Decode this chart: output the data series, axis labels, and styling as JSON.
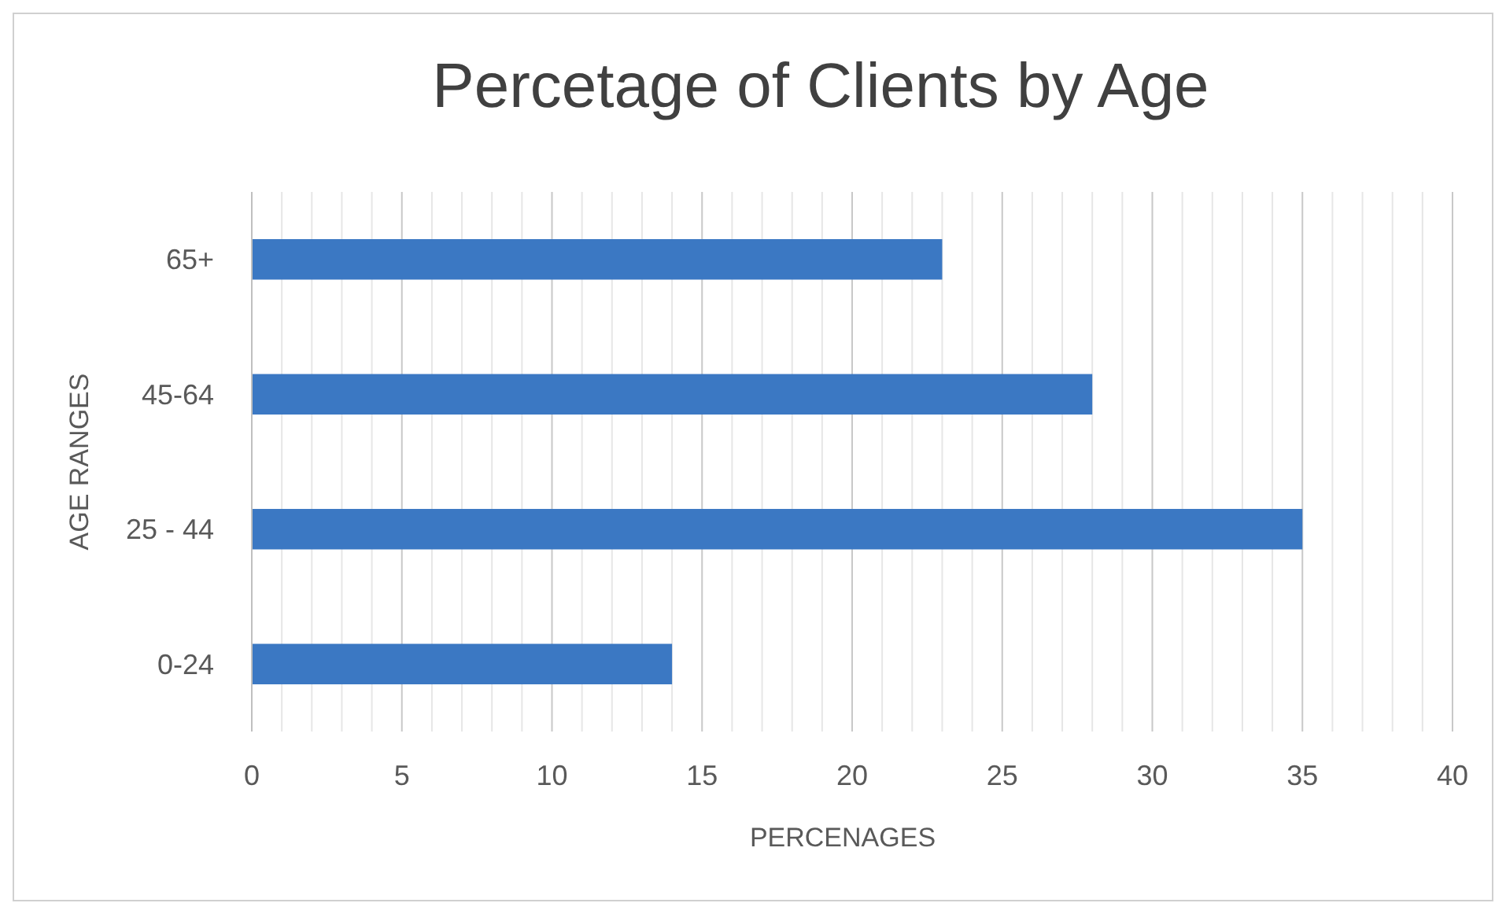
{
  "chart_data": {
    "type": "bar",
    "orientation": "horizontal",
    "title": "Percetage of Clients by Age",
    "xlabel": "PERCENAGES",
    "ylabel": "AGE RANGES",
    "categories": [
      "65+",
      "45-64",
      "25 - 44",
      "0-24"
    ],
    "values": [
      23,
      28,
      35,
      14
    ],
    "color": "#3b78c3",
    "xlim": [
      0,
      40
    ],
    "xticks": [
      0,
      {
        "value": 1,
        "label": null
      },
      {
        "value": 2,
        "label": null
      },
      {
        "value": 3,
        "label": null
      },
      {
        "value": 4,
        "label": null
      },
      5,
      {
        "value": 6,
        "label": null
      },
      {
        "value": 7,
        "label": null
      },
      {
        "value": 8,
        "label": null
      },
      {
        "value": 9,
        "label": null
      },
      10,
      {
        "value": 11,
        "label": null
      },
      {
        "value": 12,
        "label": null
      },
      {
        "value": 13,
        "label": null
      },
      {
        "value": 14,
        "label": null
      },
      15,
      {
        "value": 16,
        "label": null
      },
      {
        "value": 17,
        "label": null
      },
      {
        "value": 18,
        "label": null
      },
      {
        "value": 19,
        "label": null
      },
      20,
      {
        "value": 21,
        "label": null
      },
      {
        "value": 22,
        "label": null
      },
      {
        "value": 23,
        "label": null
      },
      {
        "value": 24,
        "label": null
      },
      25,
      {
        "value": 26,
        "label": null
      },
      {
        "value": 27,
        "label": null
      },
      {
        "value": 28,
        "label": null
      },
      {
        "value": 29,
        "label": null
      },
      30,
      {
        "value": 31,
        "label": null
      },
      {
        "value": 32,
        "label": null
      },
      {
        "value": 33,
        "label": null
      },
      {
        "value": 34,
        "label": null
      },
      35,
      {
        "value": 36,
        "label": null
      },
      {
        "value": 37,
        "label": null
      },
      {
        "value": 38,
        "label": null
      },
      {
        "value": 39,
        "label": null
      },
      40
    ],
    "grid": "x"
  }
}
